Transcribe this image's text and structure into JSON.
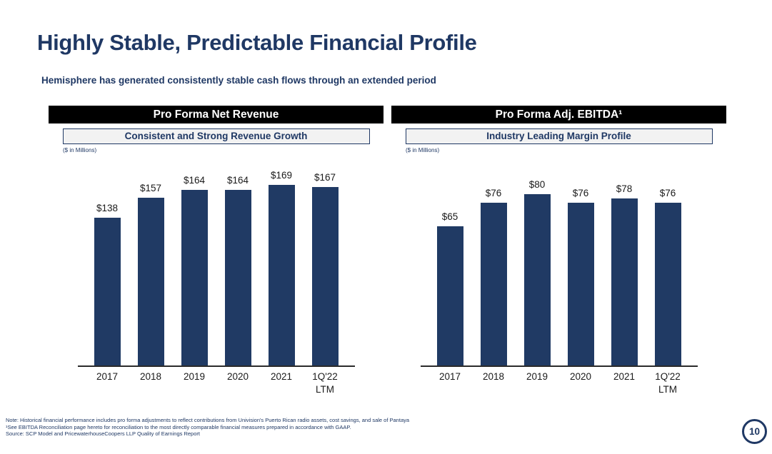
{
  "slide": {
    "title": "Highly Stable, Predictable Financial Profile",
    "subtitle": "Hemisphere has generated consistently stable cash flows through an extended period",
    "page_number": "10"
  },
  "panels": [
    {
      "header": "Pro Forma Net Revenue",
      "tagline": "Consistent and Strong Revenue Growth",
      "units_label": "($ in Millions)"
    },
    {
      "header": "Pro Forma Adj. EBITDA¹",
      "tagline": "Industry Leading Margin Profile",
      "units_label": "($ in Millions)"
    }
  ],
  "chart_data": [
    {
      "type": "bar",
      "title": "Pro Forma Net Revenue",
      "subtitle": "Consistent and Strong Revenue Growth",
      "units": "$ in Millions",
      "categories": [
        "2017",
        "2018",
        "2019",
        "2020",
        "2021",
        "1Q'22\nLTM"
      ],
      "values": [
        138,
        157,
        164,
        164,
        169,
        167
      ],
      "labels": [
        "$138",
        "$157",
        "$164",
        "$164",
        "$169",
        "$167"
      ],
      "ylim": [
        0,
        180
      ],
      "bar_color": "#203A64",
      "grid": false,
      "legend": false
    },
    {
      "type": "bar",
      "title": "Pro Forma Adj. EBITDA¹",
      "subtitle": "Industry Leading Margin Profile",
      "units": "$ in Millions",
      "categories": [
        "2017",
        "2018",
        "2019",
        "2020",
        "2021",
        "1Q'22\nLTM"
      ],
      "values": [
        65,
        76,
        80,
        76,
        78,
        76
      ],
      "labels": [
        "$65",
        "$76",
        "$80",
        "$76",
        "$78",
        "$76"
      ],
      "ylim": [
        0,
        90
      ],
      "bar_color": "#203A64",
      "grid": false,
      "legend": false
    }
  ],
  "footnotes": [
    "Note: Historical financial performance includes pro forma adjustments to reflect contributions from Univision's Puerto Rican radio assets, cost savings, and sale of Pantaya",
    "¹See EBITDA Reconciliation page hereto for reconciliation to the most directly comparable financial measures prepared in accordance with GAAP.",
    "Source: SCP Model and PricewaterhouseCoopers LLP Quality of Earnings Report"
  ],
  "colors": {
    "accent_navy": "#1F3864",
    "bar_fill": "#203A64",
    "header_bg": "#000000",
    "header_text": "#FFFFFF",
    "tagline_bg": "#F2F2F2",
    "label_text": "#1A1A1A"
  }
}
